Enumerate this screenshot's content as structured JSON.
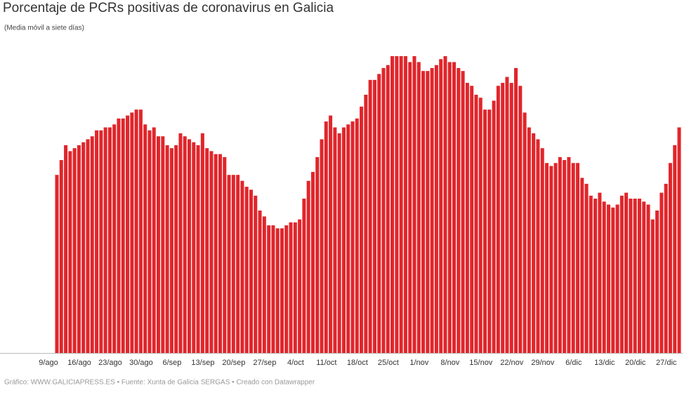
{
  "chart_data": {
    "type": "bar",
    "title": "Porcentaje de PCRs positivas de coronavirus en Galicia",
    "subtitle": "(Media móvil a siete días)",
    "source": "Gráfico: WWW.GALICIAPRESS.ES • Fuente: Xunta de Galicia SERGAS • Creado con Datawrapper",
    "color": "#e0262b",
    "ylim": [
      0,
      10
    ],
    "categories": [
      "9/ago",
      null,
      null,
      null,
      null,
      null,
      null,
      "16/ago",
      null,
      null,
      null,
      null,
      null,
      null,
      "23/ago",
      null,
      null,
      null,
      null,
      null,
      null,
      "30/ago",
      null,
      null,
      null,
      null,
      null,
      null,
      "6/sep",
      null,
      null,
      null,
      null,
      null,
      null,
      "13/sep",
      null,
      null,
      null,
      null,
      null,
      null,
      "20/sep",
      null,
      null,
      null,
      null,
      null,
      null,
      "27/sep",
      null,
      null,
      null,
      null,
      null,
      null,
      "4/oct",
      null,
      null,
      null,
      null,
      null,
      null,
      "11/oct",
      null,
      null,
      null,
      null,
      null,
      null,
      "18/oct",
      null,
      null,
      null,
      null,
      null,
      null,
      "25/oct",
      null,
      null,
      null,
      null,
      null,
      null,
      "1/nov",
      null,
      null,
      null,
      null,
      null,
      null,
      "8/nov",
      null,
      null,
      null,
      null,
      null,
      null,
      "15/nov",
      null,
      null,
      null,
      null,
      null,
      null,
      "22/nov",
      null,
      null,
      null,
      null,
      null,
      null,
      "29/nov",
      null,
      null,
      null,
      null,
      null,
      null,
      "6/dic",
      null,
      null,
      null,
      null,
      null,
      null,
      "13/dic",
      null,
      null,
      null,
      null,
      null,
      null,
      "20/dic",
      null,
      null,
      null,
      null,
      null,
      null,
      "27/dic",
      null
    ],
    "values": [
      6.0,
      6.5,
      7.0,
      6.8,
      6.9,
      7.0,
      7.1,
      7.2,
      7.3,
      7.5,
      7.5,
      7.6,
      7.6,
      7.7,
      7.9,
      7.9,
      8.0,
      8.1,
      8.2,
      8.2,
      7.7,
      7.5,
      7.6,
      7.3,
      7.3,
      7.0,
      6.9,
      7.0,
      7.4,
      7.3,
      7.2,
      7.1,
      7.0,
      7.4,
      6.9,
      6.8,
      6.7,
      6.7,
      6.6,
      6.0,
      6.0,
      6.0,
      5.8,
      5.6,
      5.5,
      5.3,
      4.8,
      4.6,
      4.3,
      4.3,
      4.2,
      4.2,
      4.3,
      4.4,
      4.4,
      4.5,
      5.2,
      5.8,
      6.1,
      6.6,
      7.2,
      7.8,
      8.0,
      7.6,
      7.4,
      7.6,
      7.7,
      7.8,
      7.9,
      8.3,
      8.7,
      9.2,
      9.2,
      9.4,
      9.6,
      9.7,
      10.0,
      10.0,
      10.0,
      10.0,
      9.8,
      10.0,
      9.8,
      9.5,
      9.5,
      9.6,
      9.7,
      9.9,
      10.0,
      9.8,
      9.8,
      9.6,
      9.5,
      9.1,
      9.0,
      8.7,
      8.6,
      8.2,
      8.2,
      8.5,
      9.0,
      9.1,
      9.3,
      9.1,
      9.6,
      9.0,
      8.1,
      7.6,
      7.4,
      7.2,
      6.9,
      6.4,
      6.3,
      6.4,
      6.6,
      6.5,
      6.6,
      6.4,
      6.4,
      5.9,
      5.7,
      5.3,
      5.2,
      5.4,
      5.1,
      5.0,
      4.9,
      5.0,
      5.3,
      5.4,
      5.2,
      5.2,
      5.2,
      5.1,
      5.0,
      4.5,
      4.8,
      5.4,
      5.7,
      6.4,
      7.0,
      7.6
    ]
  }
}
